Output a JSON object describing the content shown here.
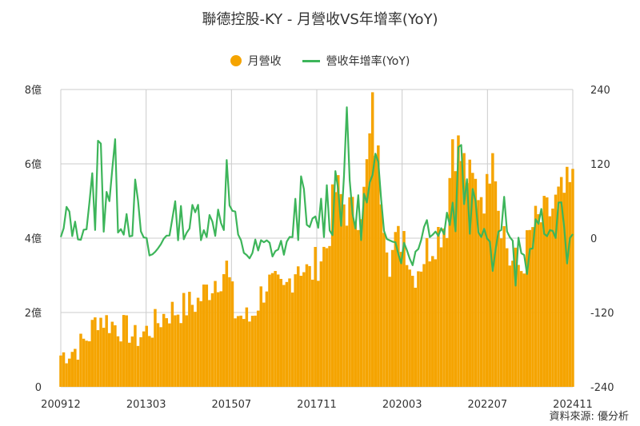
{
  "chart_data": {
    "type": "bar+line",
    "title": "聯德控股-KY - 月營收VS年增率(YoY)",
    "colors": {
      "bar": "#F5A400",
      "line": "#3DB55A",
      "grid": "#cccccc"
    },
    "series": [
      {
        "name": "月營收",
        "axis": "left",
        "type": "bar"
      },
      {
        "name": "營收年增率(YoY)",
        "axis": "right",
        "type": "line"
      }
    ],
    "x_ticks": [
      "200912",
      "201303",
      "201507",
      "201711",
      "202003",
      "202207",
      "202411"
    ],
    "left_axis": {
      "ticks": [
        "0",
        "2億",
        "4億",
        "6億",
        "8億"
      ],
      "ylim": [
        0,
        8
      ],
      "unit": "億"
    },
    "right_axis": {
      "ticks": [
        "-240",
        "-120",
        "0",
        "120",
        "240"
      ],
      "ylim": [
        -240,
        240
      ]
    },
    "x_range": [
      "2009-12",
      "2024-11"
    ],
    "legend_position": "top-center",
    "grid": true,
    "bar_anchors": [
      [
        "2009-12",
        0.85
      ],
      [
        "2010-06",
        1.05
      ],
      [
        "2010-10",
        1.4
      ],
      [
        "2011-01",
        1.9
      ],
      [
        "2011-06",
        1.7
      ],
      [
        "2011-12",
        1.5
      ],
      [
        "2012-02",
        1.3
      ],
      [
        "2012-08",
        1.6
      ],
      [
        "2013-01",
        2.0
      ],
      [
        "2013-06",
        2.1
      ],
      [
        "2013-12",
        2.3
      ],
      [
        "2014-06",
        2.9
      ],
      [
        "2014-10",
        3.2
      ],
      [
        "2014-12",
        2.4
      ],
      [
        "2015-01",
        2.0
      ],
      [
        "2015-06",
        1.8
      ],
      [
        "2015-12",
        2.8
      ],
      [
        "2016-06",
        2.5
      ],
      [
        "2016-11",
        3.4
      ],
      [
        "2017-03",
        3.0
      ],
      [
        "2017-09",
        3.8
      ],
      [
        "2017-12",
        5.3
      ],
      [
        "2018-06",
        4.6
      ],
      [
        "2018-10",
        5.1
      ],
      [
        "2019-01",
        7.3
      ],
      [
        "2019-03",
        6.0
      ],
      [
        "2019-07",
        3.5
      ],
      [
        "2019-12",
        4.2
      ],
      [
        "2020-03",
        3.0
      ],
      [
        "2020-09",
        3.8
      ],
      [
        "2021-03",
        4.5
      ],
      [
        "2021-05",
        6.8
      ],
      [
        "2021-11",
        5.5
      ],
      [
        "2022-05",
        5.2
      ],
      [
        "2022-07",
        7.0
      ],
      [
        "2022-09",
        5.0
      ],
      [
        "2023-01",
        3.4
      ],
      [
        "2023-05",
        3.2
      ],
      [
        "2023-09",
        4.3
      ],
      [
        "2024-02",
        4.6
      ],
      [
        "2024-06",
        5.0
      ],
      [
        "2024-11",
        5.4
      ]
    ],
    "yoy_anchors": [
      [
        "2009-12",
        0
      ],
      [
        "2010-03",
        40
      ],
      [
        "2010-06",
        0
      ],
      [
        "2010-10",
        35
      ],
      [
        "2011-01",
        105
      ],
      [
        "2011-04",
        115
      ],
      [
        "2011-07",
        80
      ],
      [
        "2011-12",
        30
      ],
      [
        "2012-02",
        50
      ],
      [
        "2012-06",
        -20
      ],
      [
        "2012-09",
        -30
      ],
      [
        "2013-01",
        10
      ],
      [
        "2013-05",
        35
      ],
      [
        "2013-08",
        15
      ],
      [
        "2013-12",
        40
      ],
      [
        "2014-05",
        20
      ],
      [
        "2014-10",
        80
      ],
      [
        "2014-12",
        40
      ],
      [
        "2015-03",
        -15
      ],
      [
        "2015-07",
        -25
      ],
      [
        "2015-12",
        -10
      ],
      [
        "2016-03",
        -20
      ],
      [
        "2016-08",
        -10
      ],
      [
        "2016-11",
        70
      ],
      [
        "2017-03",
        10
      ],
      [
        "2017-08",
        50
      ],
      [
        "2017-11",
        65
      ],
      [
        "2018-03",
        130
      ],
      [
        "2018-07",
        30
      ],
      [
        "2018-12",
        60
      ],
      [
        "2019-02",
        80
      ],
      [
        "2019-06",
        10
      ],
      [
        "2019-11",
        -20
      ],
      [
        "2020-04",
        -25
      ],
      [
        "2020-09",
        40
      ],
      [
        "2020-12",
        5
      ],
      [
        "2021-04",
        40
      ],
      [
        "2021-10",
        160
      ],
      [
        "2022-02",
        40
      ],
      [
        "2022-07",
        -25
      ],
      [
        "2022-11",
        40
      ],
      [
        "2023-03",
        -45
      ],
      [
        "2023-08",
        -30
      ],
      [
        "2023-11",
        40
      ],
      [
        "2024-02",
        -5
      ],
      [
        "2024-06",
        60
      ],
      [
        "2024-09",
        -20
      ],
      [
        "2024-11",
        20
      ]
    ]
  },
  "source": "資料來源: 優分析"
}
